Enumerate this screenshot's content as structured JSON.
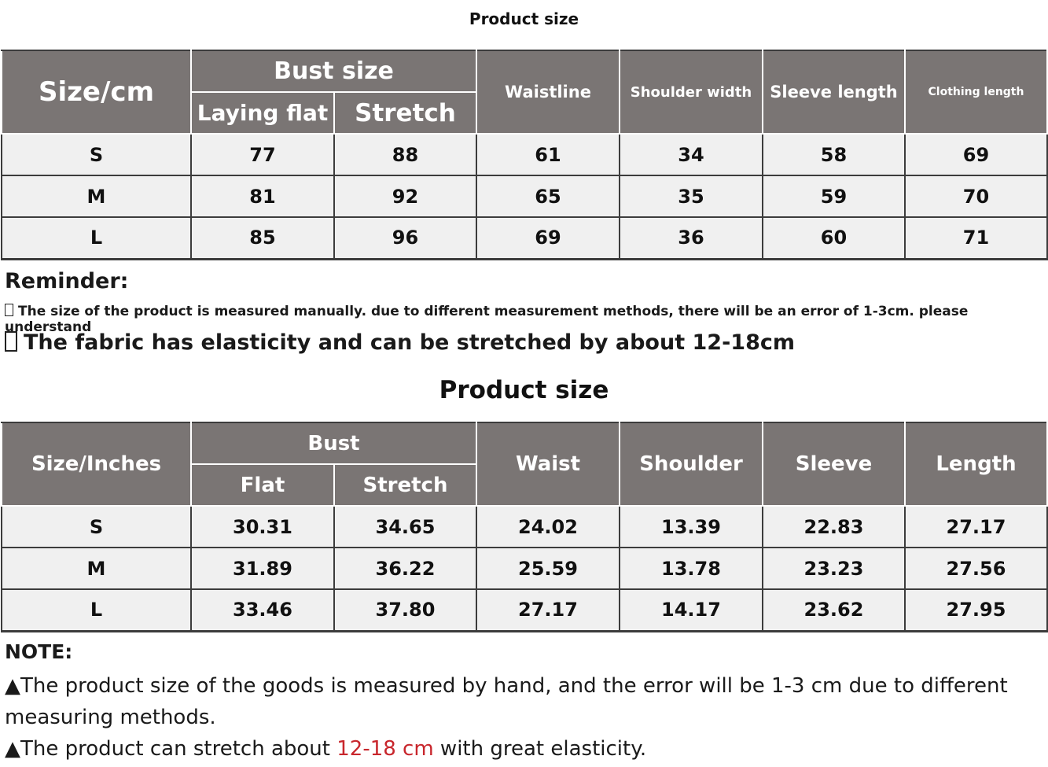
{
  "top_title": "Product size",
  "table1": {
    "size_header": "Size/cm",
    "bust_header": "Bust size",
    "bust_sub": [
      "Laying flat",
      "Stretch"
    ],
    "columns": [
      "Waistline",
      "Shoulder width",
      "Sleeve length",
      "Clothing length"
    ],
    "rows": [
      [
        "S",
        "77",
        "88",
        "61",
        "34",
        "58",
        "69"
      ],
      [
        "M",
        "81",
        "92",
        "65",
        "35",
        "59",
        "70"
      ],
      [
        "L",
        "85",
        "96",
        "69",
        "36",
        "60",
        "71"
      ]
    ]
  },
  "reminder": {
    "heading": "Reminder:",
    "line1": "The size of the product is measured manually. due to different measurement methods, there will be an error of 1-3cm. please understand",
    "line2": "The fabric has elasticity and can be stretched by about 12-18cm"
  },
  "second_title": "Product size",
  "table2": {
    "size_header": "Size/Inches",
    "bust_header": "Bust",
    "bust_sub": [
      "Flat",
      "Stretch"
    ],
    "columns": [
      "Waist",
      "Shoulder",
      "Sleeve",
      "Length"
    ],
    "rows": [
      [
        "S",
        "30.31",
        "34.65",
        "24.02",
        "13.39",
        "22.83",
        "27.17"
      ],
      [
        "M",
        "31.89",
        "36.22",
        "25.59",
        "13.78",
        "23.23",
        "27.56"
      ],
      [
        "L",
        "33.46",
        "37.80",
        "27.17",
        "14.17",
        "23.62",
        "27.95"
      ]
    ]
  },
  "note": {
    "heading": "NOTE:",
    "line1": "▲The product size of the goods is measured by hand, and the error will be 1-3 cm due to different measuring methods.",
    "line2_pre": "▲The product can stretch about ",
    "line2_highlight": "12-18 cm",
    "line2_post": " with great elasticity.",
    "highlight_color": "#c8262c"
  },
  "colors": {
    "header_bg": "#7a7574",
    "cell_bg": "#f0f0f0",
    "border": "#3c3c3c"
  }
}
